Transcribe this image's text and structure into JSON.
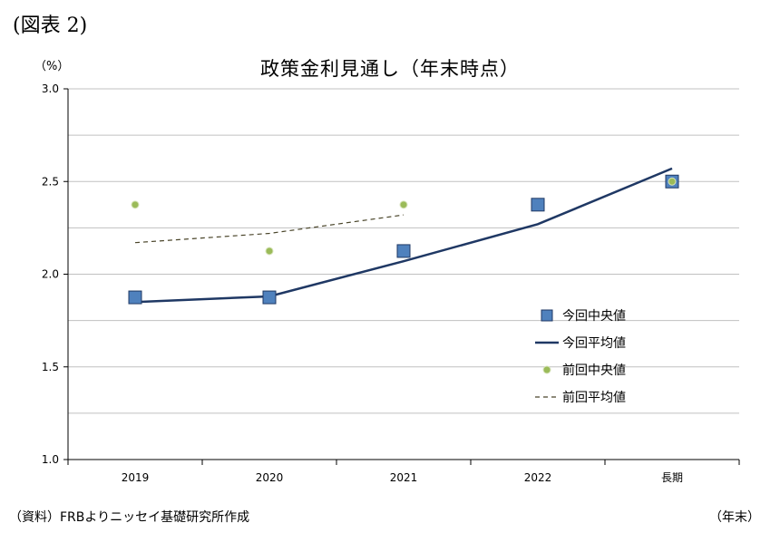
{
  "figure_label": "(図表 2)",
  "unit_label": "（%）",
  "source_note": "（資料）FRBよりニッセイ基礎研究所作成",
  "x_unit_note": "（年末）",
  "colors": {
    "current_median": "#4f81bd",
    "current_median_border": "#1f3864",
    "current_mean": "#1f3864",
    "previous_median": "#9bbb59",
    "previous_mean": "#4a452a",
    "grid": "#c0c0c0"
  },
  "chart_data": {
    "type": "line",
    "title": "政策金利見通し（年末時点）",
    "xlabel": "",
    "ylabel": "",
    "categories": [
      "2019",
      "2020",
      "2021",
      "2022",
      "長期"
    ],
    "ylim": [
      1.0,
      3.0
    ],
    "yticks": [
      "1.0",
      "1.5",
      "2.0",
      "2.5",
      "3.0"
    ],
    "grid": true,
    "legend_position": "right",
    "series": [
      {
        "name": "今回中央値",
        "kind": "square-marker",
        "values": [
          1.875,
          1.875,
          2.125,
          2.375,
          2.5
        ]
      },
      {
        "name": "今回平均値",
        "kind": "solid-line",
        "values": [
          1.85,
          1.88,
          2.07,
          2.27,
          2.57
        ]
      },
      {
        "name": "前回中央値",
        "kind": "dot-marker",
        "values": [
          2.375,
          2.125,
          2.375,
          null,
          2.5
        ]
      },
      {
        "name": "前回平均値",
        "kind": "dashed-line",
        "values": [
          2.17,
          2.22,
          2.32,
          null,
          null
        ]
      }
    ]
  }
}
